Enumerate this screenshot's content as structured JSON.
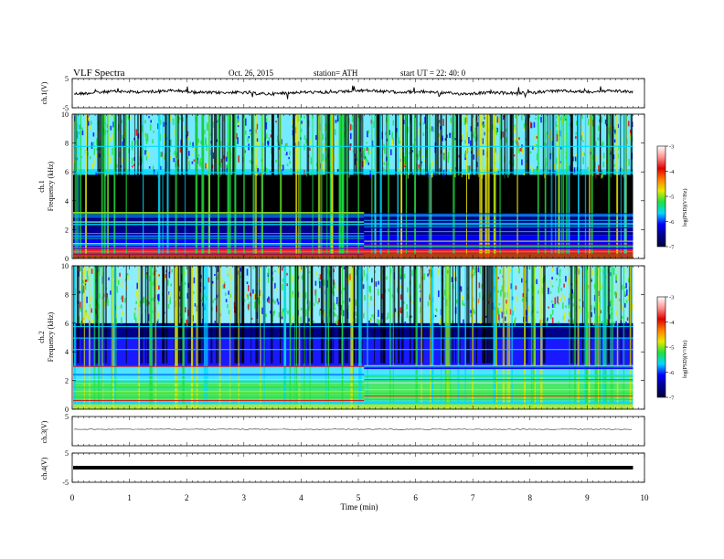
{
  "header": {
    "title": "VLF  Spectra",
    "date": "Oct. 26, 2015",
    "station": "station= ATH",
    "start": "start  UT  =   22: 40: 0"
  },
  "chart_data": [
    {
      "type": "line",
      "panel": "ch1-waveform",
      "ylabel": "ch.1(V)",
      "ylim": [
        -5,
        5
      ],
      "yticks": [
        "5",
        "-5"
      ],
      "series": [
        {
          "x": [
            0,
            1,
            2,
            3,
            4,
            5,
            6,
            7,
            8,
            9,
            9.8
          ],
          "y": [
            0.2,
            0.1,
            0.3,
            0.2,
            0.1,
            0.2,
            0.3,
            0.2,
            0.1,
            0.2,
            0.2
          ]
        }
      ]
    },
    {
      "type": "heatmap",
      "panel": "ch1-spectrogram",
      "ylabel": "ch.1\nFrequency  (kHz)",
      "ylim": [
        0,
        10
      ],
      "yticks": [
        "0",
        "2",
        "4",
        "6",
        "8",
        "10"
      ],
      "colorbar": {
        "label": "log(PSD)(V²/Hz)",
        "range": [
          -7,
          -3
        ],
        "ticks": [
          "-3",
          "-4",
          "-5",
          "-6",
          "-7"
        ]
      }
    },
    {
      "type": "heatmap",
      "panel": "ch2-spectrogram",
      "ylabel": "ch.2\nFrequency  (kHz)",
      "ylim": [
        0,
        10
      ],
      "yticks": [
        "0",
        "2",
        "4",
        "6",
        "8",
        "10"
      ],
      "colorbar": {
        "label": "log(PSD)(V²/Hz)",
        "range": [
          -7,
          -3
        ],
        "ticks": [
          "-3",
          "-4",
          "-5",
          "-6",
          "-7"
        ]
      }
    },
    {
      "type": "line",
      "panel": "ch3-waveform",
      "ylabel": "ch.3(V)",
      "ylim": [
        -5,
        5
      ],
      "yticks": [
        "5"
      ],
      "series": [
        {
          "x": [
            0,
            9.8
          ],
          "y": [
            0,
            0
          ]
        }
      ]
    },
    {
      "type": "line",
      "panel": "ch4-waveform",
      "ylabel": "ch.4(V)",
      "ylim": [
        -5,
        5
      ],
      "yticks": [
        "5",
        "-5"
      ],
      "series": [
        {
          "x": [
            0,
            9.8
          ],
          "y": [
            0,
            0
          ]
        }
      ]
    }
  ],
  "xaxis": {
    "label": "Time  (min)",
    "xlim": [
      0,
      10
    ],
    "ticks": [
      "0",
      "1",
      "2",
      "3",
      "4",
      "5",
      "6",
      "7",
      "8",
      "9",
      "10"
    ]
  },
  "colors": {
    "black": "#000000",
    "darkblue": "#00008a",
    "blue": "#0000ff",
    "cyan": "#00d8ff",
    "green": "#20e040",
    "yellow": "#e8e800",
    "red": "#e00000"
  }
}
